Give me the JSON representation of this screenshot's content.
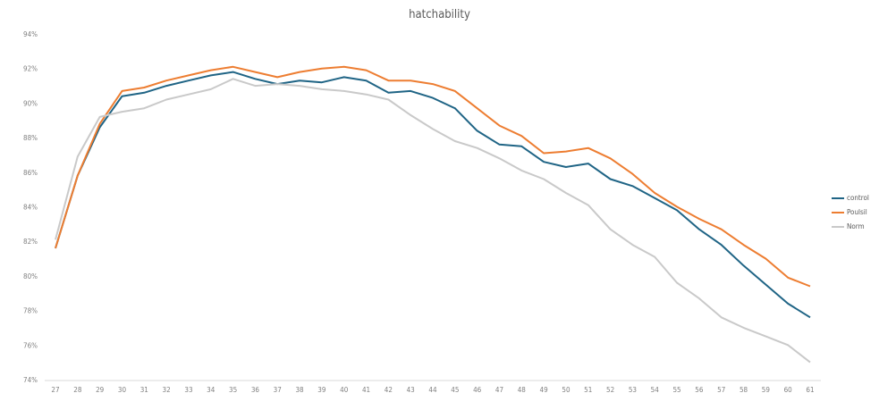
{
  "chart_data": {
    "type": "line",
    "title": "hatchability",
    "xlabel": "",
    "ylabel": "",
    "ylim": [
      74,
      94
    ],
    "yticks": [
      74,
      76,
      78,
      80,
      82,
      84,
      86,
      88,
      90,
      92,
      94
    ],
    "ytick_suffix": "%",
    "grid": false,
    "legend": "right",
    "categories": [
      "27",
      "28",
      "29",
      "30",
      "31",
      "32",
      "33",
      "34",
      "35",
      "36",
      "37",
      "38",
      "39",
      "40",
      "41",
      "42",
      "43",
      "44",
      "45",
      "46",
      "47",
      "48",
      "49",
      "50",
      "51",
      "52",
      "53",
      "54",
      "55",
      "56",
      "57",
      "58",
      "59",
      "60",
      "61"
    ],
    "series": [
      {
        "name": "control",
        "color": "#1f6485",
        "values": [
          81.6,
          85.8,
          88.6,
          90.4,
          90.6,
          91.0,
          91.3,
          91.6,
          91.8,
          91.4,
          91.1,
          91.3,
          91.2,
          91.5,
          91.3,
          90.6,
          90.7,
          90.3,
          89.7,
          88.4,
          87.6,
          87.5,
          86.6,
          86.3,
          86.5,
          85.6,
          85.2,
          84.5,
          83.8,
          82.7,
          81.8,
          80.6,
          79.5,
          78.4,
          77.6
        ]
      },
      {
        "name": "Poulsil",
        "color": "#ed7d31",
        "values": [
          81.6,
          85.8,
          88.8,
          90.7,
          90.9,
          91.3,
          91.6,
          91.9,
          92.1,
          91.8,
          91.5,
          91.8,
          92.0,
          92.1,
          91.9,
          91.3,
          91.3,
          91.1,
          90.7,
          89.7,
          88.7,
          88.1,
          87.1,
          87.2,
          87.4,
          86.8,
          85.9,
          84.8,
          84.0,
          83.3,
          82.7,
          81.8,
          81.0,
          79.9,
          79.4
        ]
      },
      {
        "name": "Norm",
        "color": "#c9c9c9",
        "values": [
          82.1,
          86.9,
          89.2,
          89.5,
          89.7,
          90.2,
          90.5,
          90.8,
          91.4,
          91.0,
          91.1,
          91.0,
          90.8,
          90.7,
          90.5,
          90.2,
          89.3,
          88.5,
          87.8,
          87.4,
          86.8,
          86.1,
          85.6,
          84.8,
          84.1,
          82.7,
          81.8,
          81.1,
          79.6,
          78.7,
          77.6,
          77.0,
          76.5,
          76.0,
          75.0
        ]
      }
    ]
  }
}
